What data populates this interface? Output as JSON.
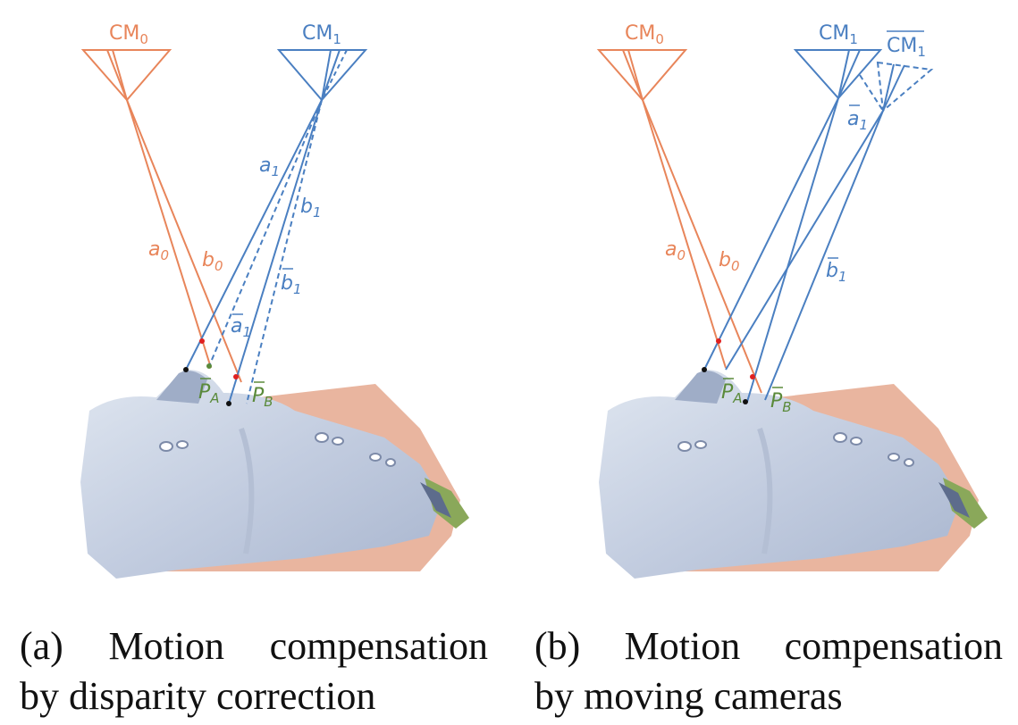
{
  "panel_a": {
    "camera0": "CM",
    "camera0_sub": "0",
    "camera1": "CM",
    "camera1_sub": "1",
    "ray_a0": "a",
    "ray_a0_sub": "0",
    "ray_b0": "b",
    "ray_b0_sub": "0",
    "ray_a1": "a",
    "ray_a1_sub": "1",
    "ray_b1": "b",
    "ray_b1_sub": "1",
    "ray_b1_bar": "b",
    "ray_b1_bar_sub": "1",
    "ray_a1_bar": "a",
    "ray_a1_bar_sub": "1",
    "point_A": "P",
    "point_A_sub": "A",
    "point_B": "P",
    "point_B_sub": "B",
    "caption_label": "(a)",
    "caption_word1": "Motion",
    "caption_word2": "compensation",
    "caption_line2": "by disparity correction"
  },
  "panel_b": {
    "camera0": "CM",
    "camera0_sub": "0",
    "camera1": "CM",
    "camera1_sub": "1",
    "camera1_bar": "CM",
    "camera1_bar_sub": "1",
    "ray_a0": "a",
    "ray_a0_sub": "0",
    "ray_b0": "b",
    "ray_b0_sub": "0",
    "ray_a1_bar": "a",
    "ray_a1_bar_sub": "1",
    "ray_b1_bar": "b",
    "ray_b1_bar_sub": "1",
    "point_A": "P",
    "point_A_sub": "A",
    "point_B": "P",
    "point_B_sub": "B",
    "caption_label": "(b)",
    "caption_word1": "Motion",
    "caption_word2": "compensation",
    "caption_line2": "by moving cameras"
  },
  "colors": {
    "camera0": "#e8855a",
    "camera1": "#4a7fc1",
    "point_label": "#5a8a3a",
    "face_fill": "#c4cfe0",
    "face_shadow": "#e9b59f"
  }
}
